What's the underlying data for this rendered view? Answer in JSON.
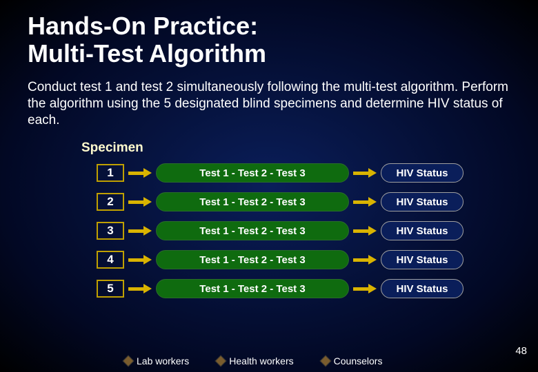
{
  "title": {
    "line1": "Hands-On Practice:",
    "line2": "Multi-Test Algorithm"
  },
  "body": "Conduct test 1 and test 2 simultaneously following the multi-test algorithm.  Perform the algorithm using the 5 designated blind specimens and determine HIV status of each.",
  "specimen_header": "Specimen",
  "rows": [
    {
      "num": "1",
      "tests": "Test 1 -  Test 2 -  Test 3",
      "status": "HIV Status"
    },
    {
      "num": "2",
      "tests": "Test 1 -  Test 2 -  Test 3",
      "status": "HIV Status"
    },
    {
      "num": "3",
      "tests": "Test 1 -  Test 2 -  Test 3",
      "status": "HIV Status"
    },
    {
      "num": "4",
      "tests": "Test 1 -  Test 2 -  Test 3",
      "status": "HIV Status"
    },
    {
      "num": "5",
      "tests": "Test 1 -  Test 2 -  Test 3",
      "status": "HIV Status"
    }
  ],
  "colors": {
    "num_box_border": "#c0a000",
    "arrow": "#d9b300",
    "test_pill_bg": "#0f6b0f",
    "status_pill_bg": "#0a1e5a",
    "status_pill_border": "#a0a0a0"
  },
  "legend": [
    {
      "label": "Lab workers",
      "color": "#7a5c2e"
    },
    {
      "label": "Health workers",
      "color": "#7a5c2e"
    },
    {
      "label": "Counselors",
      "color": "#7a5c2e"
    }
  ],
  "page_number": "48"
}
